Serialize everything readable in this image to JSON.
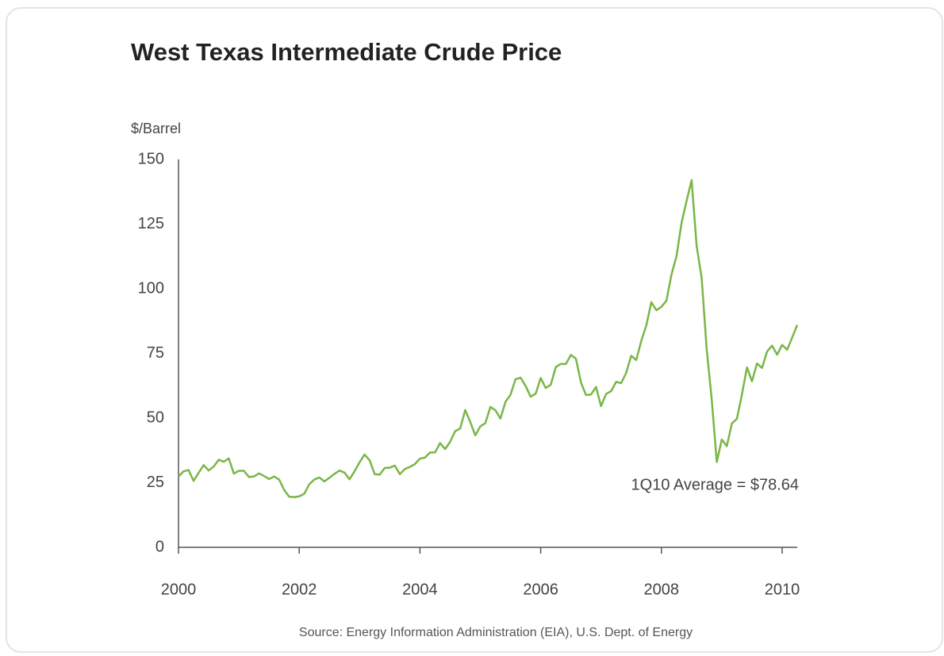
{
  "chart_data": {
    "type": "line",
    "title": "West Texas Intermediate Crude Price",
    "y_label": "$/Barrel",
    "annotation": "1Q10 Average = $78.64",
    "source": "Source: Energy Information Administration (EIA), U.S. Dept. of Energy",
    "color": "#7ab648",
    "grid": false,
    "xlim": [
      2000,
      2010.25
    ],
    "ylim": [
      0,
      150
    ],
    "xticks": [
      2000,
      2002,
      2004,
      2006,
      2008,
      2010
    ],
    "yticks": [
      0,
      25,
      50,
      75,
      100,
      125,
      150
    ],
    "x": [
      2000,
      2000.083,
      2000.167,
      2000.25,
      2000.333,
      2000.417,
      2000.5,
      2000.583,
      2000.667,
      2000.75,
      2000.833,
      2000.917,
      2001,
      2001.083,
      2001.167,
      2001.25,
      2001.333,
      2001.417,
      2001.5,
      2001.583,
      2001.667,
      2001.75,
      2001.833,
      2001.917,
      2002,
      2002.083,
      2002.167,
      2002.25,
      2002.333,
      2002.417,
      2002.5,
      2002.583,
      2002.667,
      2002.75,
      2002.833,
      2002.917,
      2003,
      2003.083,
      2003.167,
      2003.25,
      2003.333,
      2003.417,
      2003.5,
      2003.583,
      2003.667,
      2003.75,
      2003.833,
      2003.917,
      2004,
      2004.083,
      2004.167,
      2004.25,
      2004.333,
      2004.417,
      2004.5,
      2004.583,
      2004.667,
      2004.75,
      2004.833,
      2004.917,
      2005,
      2005.083,
      2005.167,
      2005.25,
      2005.333,
      2005.417,
      2005.5,
      2005.583,
      2005.667,
      2005.75,
      2005.833,
      2005.917,
      2006,
      2006.083,
      2006.167,
      2006.25,
      2006.333,
      2006.417,
      2006.5,
      2006.583,
      2006.667,
      2006.75,
      2006.833,
      2006.917,
      2007,
      2007.083,
      2007.167,
      2007.25,
      2007.333,
      2007.417,
      2007.5,
      2007.583,
      2007.667,
      2007.75,
      2007.833,
      2007.917,
      2008,
      2008.083,
      2008.167,
      2008.25,
      2008.333,
      2008.417,
      2008.5,
      2008.583,
      2008.667,
      2008.75,
      2008.833,
      2008.917,
      2009,
      2009.083,
      2009.167,
      2009.25,
      2009.333,
      2009.417,
      2009.5,
      2009.583,
      2009.667,
      2009.75,
      2009.833,
      2009.917,
      2010,
      2010.083,
      2010.167,
      2010.25
    ],
    "values": [
      27.3,
      29.4,
      29.9,
      25.7,
      28.8,
      31.8,
      29.7,
      31.2,
      33.9,
      33.1,
      34.4,
      28.5,
      29.6,
      29.6,
      27.2,
      27.4,
      28.6,
      27.6,
      26.4,
      27.4,
      26.2,
      22.2,
      19.6,
      19.4,
      19.7,
      20.7,
      24.4,
      26.2,
      27.0,
      25.5,
      26.9,
      28.4,
      29.7,
      28.9,
      26.3,
      29.4,
      32.9,
      35.9,
      33.6,
      28.3,
      28.1,
      30.7,
      30.8,
      31.6,
      28.3,
      30.3,
      31.1,
      32.2,
      34.3,
      34.7,
      36.7,
      36.7,
      40.3,
      38.0,
      40.8,
      44.9,
      46.0,
      53.1,
      48.5,
      43.3,
      46.8,
      48.0,
      54.3,
      53.0,
      49.8,
      56.3,
      59.0,
      65.0,
      65.6,
      62.4,
      58.3,
      59.4,
      65.5,
      61.6,
      62.9,
      69.7,
      70.9,
      70.9,
      74.4,
      73.0,
      63.8,
      58.9,
      59.1,
      62.0,
      54.6,
      59.3,
      60.4,
      64.0,
      63.5,
      67.5,
      74.1,
      72.4,
      79.9,
      85.8,
      94.8,
      91.7,
      93.0,
      95.4,
      105.5,
      112.6,
      125.4,
      134.0,
      142.0,
      116.7,
      104.1,
      76.6,
      57.3,
      33.0,
      41.7,
      39.1,
      47.9,
      49.7,
      59.0,
      69.6,
      64.2,
      71.1,
      69.4,
      75.7,
      78.0,
      74.5,
      78.3,
      76.4,
      81.2,
      86.0
    ]
  }
}
